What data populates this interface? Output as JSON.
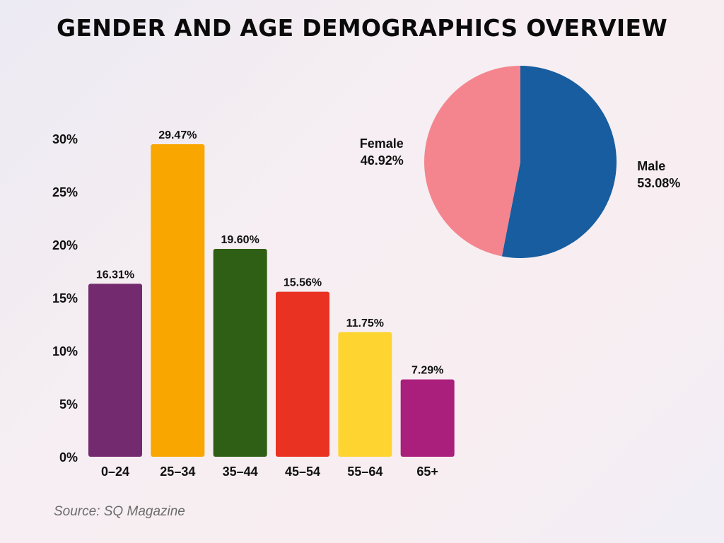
{
  "title": "GENDER AND AGE DEMOGRAPHICS OVERVIEW",
  "source": "Source: SQ Magazine",
  "chart_data": [
    {
      "type": "bar",
      "title": "",
      "xlabel": "",
      "ylabel": "",
      "categories": [
        "0–24",
        "25–34",
        "35–44",
        "45–54",
        "55–64",
        "65+"
      ],
      "values": [
        16.31,
        29.47,
        19.6,
        15.56,
        11.75,
        7.29
      ],
      "data_labels": [
        "16.31%",
        "29.47%",
        "19.60%",
        "15.56%",
        "11.75%",
        "7.29%"
      ],
      "colors": [
        "#742a6e",
        "#f9a600",
        "#2f5f14",
        "#e93222",
        "#fed530",
        "#aa1f7c"
      ],
      "ylim": [
        0,
        30
      ],
      "yticks": [
        0,
        5,
        10,
        15,
        20,
        25,
        30
      ],
      "ytick_labels": [
        "0%",
        "5%",
        "10%",
        "15%",
        "20%",
        "25%",
        "30%"
      ],
      "grid": false,
      "legend": "none"
    },
    {
      "type": "pie",
      "title": "",
      "labels": [
        "Male",
        "Female"
      ],
      "values": [
        53.08,
        46.92
      ],
      "data_labels": [
        "53.08%",
        "46.92%"
      ],
      "colors": [
        "#175d9f",
        "#f4858e"
      ],
      "legend": "none"
    }
  ]
}
